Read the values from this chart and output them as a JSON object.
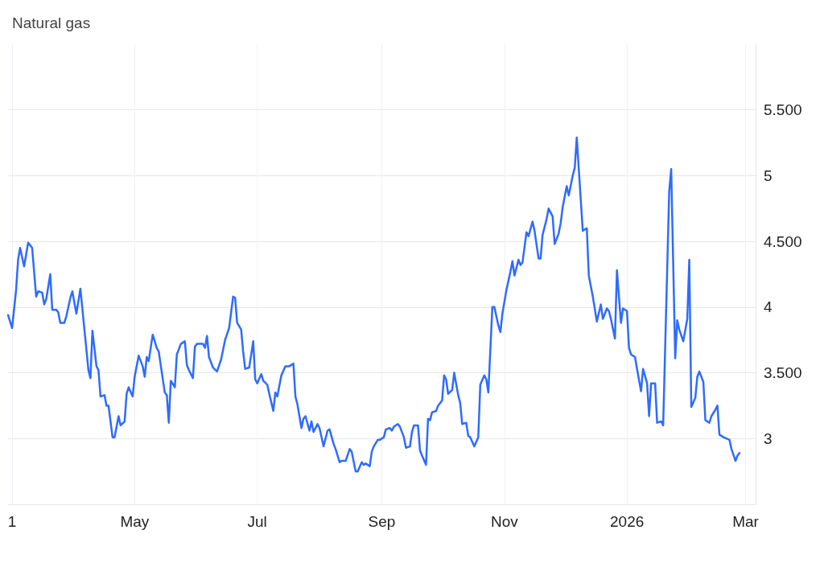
{
  "chart_data": {
    "type": "line",
    "title": "Natural gas",
    "x": [
      "2025-02-27",
      "2025-03-01",
      "2025-03-03",
      "2025-03-04",
      "2025-03-05",
      "2025-03-07",
      "2025-03-09",
      "2025-03-11",
      "2025-03-13",
      "2025-03-14",
      "2025-03-16",
      "2025-03-17",
      "2025-03-18",
      "2025-03-20",
      "2025-03-21",
      "2025-03-23",
      "2025-03-24",
      "2025-03-25",
      "2025-03-27",
      "2025-03-28",
      "2025-03-30",
      "2025-03-31",
      "2025-04-02",
      "2025-04-04",
      "2025-04-06",
      "2025-04-08",
      "2025-04-09",
      "2025-04-10",
      "2025-04-12",
      "2025-04-13",
      "2025-04-14",
      "2025-04-16",
      "2025-04-17",
      "2025-04-18",
      "2025-04-20",
      "2025-04-21",
      "2025-04-23",
      "2025-04-24",
      "2025-04-26",
      "2025-04-27",
      "2025-04-28",
      "2025-04-30",
      "2025-05-01",
      "2025-05-03",
      "2025-05-05",
      "2025-05-06",
      "2025-05-07",
      "2025-05-08",
      "2025-05-10",
      "2025-05-12",
      "2025-05-13",
      "2025-05-16",
      "2025-05-17",
      "2025-05-18",
      "2025-05-19",
      "2025-05-21",
      "2025-05-22",
      "2025-05-24",
      "2025-05-26",
      "2025-05-27",
      "2025-05-28",
      "2025-05-30",
      "2025-05-31",
      "2025-06-01",
      "2025-06-04",
      "2025-06-05",
      "2025-06-06",
      "2025-06-07",
      "2025-06-09",
      "2025-06-11",
      "2025-06-13",
      "2025-06-15",
      "2025-06-17",
      "2025-06-19",
      "2025-06-20",
      "2025-06-21",
      "2025-06-23",
      "2025-06-24",
      "2025-06-25",
      "2025-06-27",
      "2025-06-29",
      "2025-06-30",
      "2025-07-01",
      "2025-07-03",
      "2025-07-04",
      "2025-07-06",
      "2025-07-07",
      "2025-07-09",
      "2025-07-10",
      "2025-07-11",
      "2025-07-13",
      "2025-07-15",
      "2025-07-16",
      "2025-07-17",
      "2025-07-19",
      "2025-07-20",
      "2025-07-21",
      "2025-07-23",
      "2025-07-24",
      "2025-07-25",
      "2025-07-27",
      "2025-07-28",
      "2025-07-29",
      "2025-07-31",
      "2025-08-01",
      "2025-08-03",
      "2025-08-05",
      "2025-08-06",
      "2025-08-08",
      "2025-08-09",
      "2025-08-11",
      "2025-08-12",
      "2025-08-14",
      "2025-08-16",
      "2025-08-17",
      "2025-08-19",
      "2025-08-20",
      "2025-08-22",
      "2025-08-23",
      "2025-08-24",
      "2025-08-26",
      "2025-08-27",
      "2025-08-28",
      "2025-08-30",
      "2025-08-31",
      "2025-09-02",
      "2025-09-03",
      "2025-09-05",
      "2025-09-06",
      "2025-09-07",
      "2025-09-09",
      "2025-09-10",
      "2025-09-12",
      "2025-09-13",
      "2025-09-15",
      "2025-09-16",
      "2025-09-17",
      "2025-09-19",
      "2025-09-20",
      "2025-09-21",
      "2025-09-23",
      "2025-09-24",
      "2025-09-25",
      "2025-09-26",
      "2025-09-28",
      "2025-09-29",
      "2025-10-01",
      "2025-10-02",
      "2025-10-03",
      "2025-10-04",
      "2025-10-06",
      "2025-10-07",
      "2025-10-09",
      "2025-10-10",
      "2025-10-11",
      "2025-10-13",
      "2025-10-14",
      "2025-10-15",
      "2025-10-17",
      "2025-10-19",
      "2025-10-20",
      "2025-10-22",
      "2025-10-23",
      "2025-10-24",
      "2025-10-26",
      "2025-10-27",
      "2025-10-29",
      "2025-10-30",
      "2025-10-31",
      "2025-11-02",
      "2025-11-04",
      "2025-11-05",
      "2025-11-06",
      "2025-11-08",
      "2025-11-09",
      "2025-11-10",
      "2025-11-12",
      "2025-11-13",
      "2025-11-15",
      "2025-11-16",
      "2025-11-18",
      "2025-11-19",
      "2025-11-20",
      "2025-11-22",
      "2025-11-23",
      "2025-11-25",
      "2025-11-26",
      "2025-11-28",
      "2025-11-29",
      "2025-11-30",
      "2025-12-02",
      "2025-12-03",
      "2025-12-05",
      "2025-12-06",
      "2025-12-07",
      "2025-12-10",
      "2025-12-12",
      "2025-12-13",
      "2025-12-15",
      "2025-12-17",
      "2025-12-19",
      "2025-12-20",
      "2025-12-22",
      "2025-12-23",
      "2025-12-24",
      "2025-12-26",
      "2025-12-27",
      "2025-12-29",
      "2025-12-30",
      "2026-01-01",
      "2026-01-02",
      "2026-01-03",
      "2026-01-05",
      "2026-01-06",
      "2026-01-08",
      "2026-01-09",
      "2026-01-11",
      "2026-01-12",
      "2026-01-13",
      "2026-01-15",
      "2026-01-16",
      "2026-01-18",
      "2026-01-19",
      "2026-01-22",
      "2026-01-23",
      "2026-01-25",
      "2026-01-26",
      "2026-01-27",
      "2026-01-29",
      "2026-01-31",
      "2026-02-01",
      "2026-02-02",
      "2026-02-04",
      "2026-02-05",
      "2026-02-06",
      "2026-02-08",
      "2026-02-09",
      "2026-02-11",
      "2026-02-12",
      "2026-02-14",
      "2026-02-15",
      "2026-02-16",
      "2026-02-18",
      "2026-02-21",
      "2026-02-22",
      "2026-02-24",
      "2026-02-25",
      "2026-02-26"
    ],
    "series": [
      {
        "color": "#2f6bff",
        "values": [
          3.94,
          3.84,
          4.13,
          4.36,
          4.45,
          4.31,
          4.49,
          4.45,
          4.08,
          4.12,
          4.11,
          4.02,
          4.06,
          4.25,
          3.98,
          3.98,
          3.96,
          3.88,
          3.88,
          3.93,
          4.07,
          4.12,
          3.95,
          4.14,
          3.83,
          3.52,
          3.46,
          3.82,
          3.55,
          3.52,
          3.32,
          3.33,
          3.25,
          3.25,
          3.01,
          3.01,
          3.17,
          3.1,
          3.13,
          3.34,
          3.39,
          3.32,
          3.47,
          3.63,
          3.55,
          3.47,
          3.62,
          3.59,
          3.79,
          3.69,
          3.66,
          3.35,
          3.33,
          3.12,
          3.44,
          3.39,
          3.64,
          3.72,
          3.74,
          3.56,
          3.52,
          3.46,
          3.7,
          3.72,
          3.72,
          3.69,
          3.78,
          3.62,
          3.54,
          3.51,
          3.6,
          3.75,
          3.84,
          4.08,
          4.07,
          3.88,
          3.83,
          3.66,
          3.53,
          3.54,
          3.74,
          3.45,
          3.42,
          3.49,
          3.44,
          3.41,
          3.34,
          3.21,
          3.35,
          3.32,
          3.48,
          3.55,
          3.55,
          3.55,
          3.57,
          3.32,
          3.26,
          3.08,
          3.15,
          3.17,
          3.06,
          3.13,
          3.05,
          3.11,
          3.08,
          2.94,
          3.06,
          3.07,
          2.96,
          2.92,
          2.82,
          2.83,
          2.83,
          2.92,
          2.9,
          2.75,
          2.75,
          2.82,
          2.8,
          2.81,
          2.79,
          2.9,
          2.94,
          2.99,
          2.99,
          3.01,
          3.07,
          3.08,
          3.06,
          3.09,
          3.11,
          3.09,
          3.01,
          2.93,
          2.94,
          3.05,
          3.1,
          3.1,
          2.91,
          2.87,
          2.8,
          3.15,
          3.14,
          3.2,
          3.21,
          3.25,
          3.29,
          3.48,
          3.45,
          3.34,
          3.37,
          3.5,
          3.33,
          3.27,
          3.11,
          3.12,
          3.02,
          3.01,
          2.94,
          3.01,
          3.41,
          3.48,
          3.45,
          3.35,
          4.0,
          4.0,
          3.86,
          3.81,
          3.95,
          4.13,
          4.27,
          4.35,
          4.24,
          4.36,
          4.32,
          4.34,
          4.57,
          4.54,
          4.65,
          4.58,
          4.37,
          4.37,
          4.55,
          4.67,
          4.75,
          4.69,
          4.48,
          4.56,
          4.64,
          4.76,
          4.92,
          4.85,
          5.0,
          5.06,
          5.29,
          4.58,
          4.6,
          4.24,
          4.08,
          3.89,
          4.02,
          3.91,
          3.99,
          3.97,
          3.91,
          3.76,
          4.28,
          3.88,
          3.99,
          3.97,
          3.69,
          3.64,
          3.62,
          3.53,
          3.36,
          3.53,
          3.42,
          3.17,
          3.42,
          3.42,
          3.12,
          3.13,
          3.1,
          4.88,
          5.05,
          3.61,
          3.9,
          3.83,
          3.74,
          3.91,
          4.36,
          3.24,
          3.31,
          3.47,
          3.51,
          3.43,
          3.14,
          3.12,
          3.17,
          3.22,
          3.25,
          3.03,
          3.01,
          2.99,
          2.92,
          2.83,
          2.87,
          2.89
        ]
      }
    ],
    "xlim": [
      "2025-02-27",
      "2026-03-06"
    ],
    "xticks": [
      {
        "value": "2025-03-01",
        "label": "1"
      },
      {
        "value": "2025-05-01",
        "label": "May"
      },
      {
        "value": "2025-07-01",
        "label": "Jul"
      },
      {
        "value": "2025-09-01",
        "label": "Sep"
      },
      {
        "value": "2025-11-01",
        "label": "Nov"
      },
      {
        "value": "2026-01-01",
        "label": "2026"
      },
      {
        "value": "2026-03-01",
        "label": "Mar"
      }
    ],
    "ylim": [
      2.5,
      6
    ],
    "yticks": [
      3,
      {
        "value": 3.5,
        "label": "3.500"
      },
      4,
      {
        "value": 4.5,
        "label": "4.500"
      },
      5,
      {
        "value": 5.5,
        "label": "5.500"
      }
    ],
    "grid": true,
    "marker": "none",
    "line_style": "solid"
  }
}
